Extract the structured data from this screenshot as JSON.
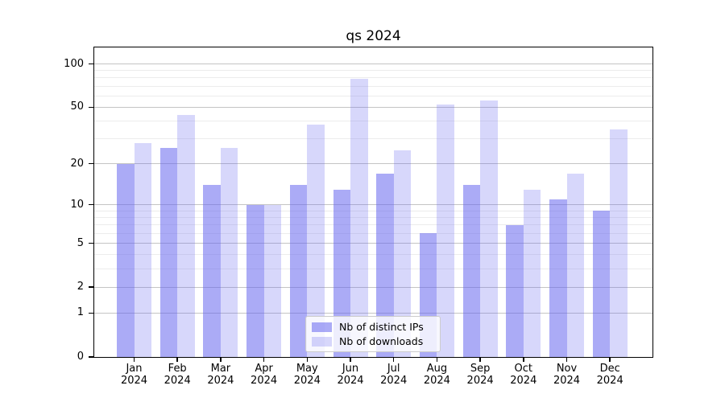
{
  "chart_data": {
    "type": "bar",
    "title": "qs 2024",
    "categories": [
      "Jan",
      "Feb",
      "Mar",
      "Apr",
      "May",
      "Jun",
      "Jul",
      "Aug",
      "Sep",
      "Oct",
      "Nov",
      "Dec"
    ],
    "category_sublabel": "2024",
    "series": [
      {
        "name": "Nb of distinct IPs",
        "slug": "distinct-ips",
        "color": "#6666ee",
        "opacity": 0.55,
        "values": [
          20,
          26,
          14,
          10,
          14,
          13,
          17,
          6,
          14,
          7,
          11,
          9
        ]
      },
      {
        "name": "Nb of downloads",
        "slug": "downloads",
        "color": "#6666ee",
        "opacity": 0.26,
        "values": [
          28,
          44,
          26,
          10,
          38,
          79,
          25,
          52,
          56,
          13,
          17,
          35
        ]
      }
    ],
    "yscale": "log1p",
    "ylim": [
      0,
      130
    ],
    "yticks": [
      100,
      50,
      20,
      10,
      5,
      2,
      1,
      0
    ],
    "yticks_minor": [
      90,
      80,
      70,
      60,
      40,
      30,
      9,
      8,
      7,
      6,
      4,
      3
    ],
    "grid": true,
    "legend_position": "lower center",
    "colors": {
      "bar_fill_base": "#6666ee",
      "major_grid": "#c4c4c4",
      "minor_grid": "#ececec",
      "spine": "#000000",
      "legend_border": "#cccccc"
    }
  }
}
